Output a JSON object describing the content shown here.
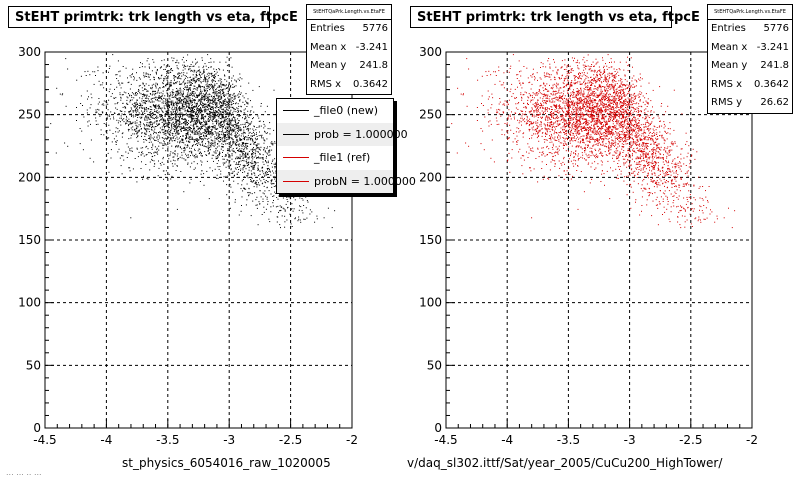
{
  "chart_data": [
    {
      "type": "scatter",
      "title": "StEHT primtrk: trk length vs eta, ftpcE",
      "statbox_title": "StEHTQaPrk.Length.vs.EtaFE",
      "stats": [
        {
          "label": "Entries",
          "value": "5776"
        },
        {
          "label": "Mean x",
          "value": "-3.241"
        },
        {
          "label": "Mean y",
          "value": "241.8"
        },
        {
          "label": "RMS x",
          "value": "0.3642"
        }
      ],
      "legend": [
        {
          "label": "_file0 (new)",
          "color": "#000000"
        },
        {
          "label": "prob = 1.000000",
          "color": "#000000"
        },
        {
          "label": "_file1 (ref)",
          "color": "#d40000"
        },
        {
          "label": "probN = 1.000000",
          "color": "#d40000"
        }
      ],
      "xlabel": "st_physics_6054016_raw_1020005",
      "xlim": [
        -4.5,
        -2
      ],
      "ylim": [
        0,
        300
      ],
      "xticks": [
        "-4.5",
        "-4",
        "-3.5",
        "-3",
        "-2.5",
        "-2"
      ],
      "yticks": [
        "0",
        "50",
        "100",
        "150",
        "200",
        "250",
        "300"
      ],
      "grid": true,
      "point_color": "#000000",
      "distribution": {
        "mean_x": -3.241,
        "mean_y": 241.8,
        "rms_x": 0.3642,
        "rms_y": 26.62,
        "entries": 5776
      }
    },
    {
      "type": "scatter",
      "title": "StEHT primtrk: trk length vs eta, ftpcE",
      "statbox_title": "StEHTQaPrk.Length.vs.EtaFE",
      "stats": [
        {
          "label": "Entries",
          "value": "5776"
        },
        {
          "label": "Mean x",
          "value": "-3.241"
        },
        {
          "label": "Mean y",
          "value": "241.8"
        },
        {
          "label": "RMS x",
          "value": "0.3642"
        },
        {
          "label": "RMS y",
          "value": "26.62"
        }
      ],
      "xlabel": "v/daq_sl302.ittf/Sat/year_2005/CuCu200_HighTower/",
      "xlim": [
        -4.5,
        -2
      ],
      "ylim": [
        0,
        300
      ],
      "xticks": [
        "-4.5",
        "-4",
        "-3.5",
        "-3",
        "-2.5",
        "-2"
      ],
      "yticks": [
        "0",
        "50",
        "100",
        "150",
        "200",
        "250",
        "300"
      ],
      "grid": true,
      "point_color": "#d40000",
      "distribution": {
        "mean_x": -3.241,
        "mean_y": 241.8,
        "rms_x": 0.3642,
        "rms_y": 26.62,
        "entries": 5776
      }
    }
  ],
  "footer_note": "... ... .. ..."
}
